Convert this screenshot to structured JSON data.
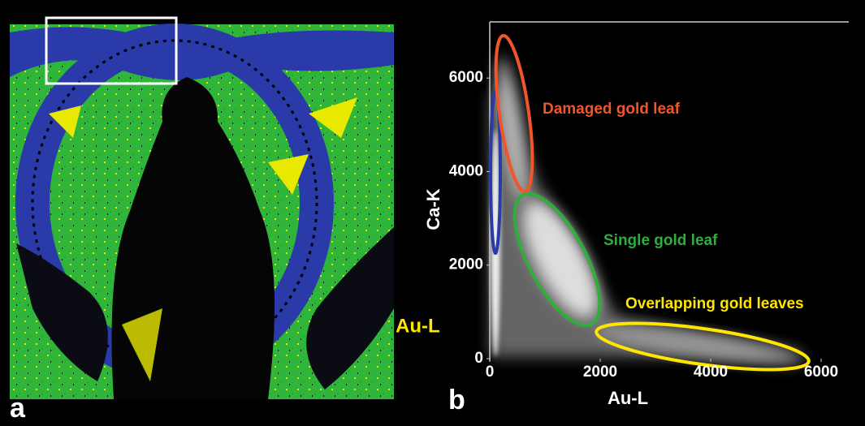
{
  "panel_a": {
    "label": "a",
    "annotation": "Au-L",
    "annotation_color": "#ffe600"
  },
  "chart_data": {
    "type": "scatter",
    "panel_label": "b",
    "xlabel": "Au-L",
    "ylabel": "Ca-K",
    "xlim": [
      0,
      6500
    ],
    "ylim": [
      0,
      7200
    ],
    "xticks": [
      0,
      2000,
      4000,
      6000
    ],
    "yticks": [
      0,
      2000,
      4000,
      6000
    ],
    "annotations": [
      {
        "text": "Damaged gold leaf",
        "color": "#f0562a"
      },
      {
        "text": "Single gold leaf",
        "color": "#2fae3c"
      },
      {
        "text": "Overlapping gold leaves",
        "color": "#ffe600"
      }
    ]
  }
}
